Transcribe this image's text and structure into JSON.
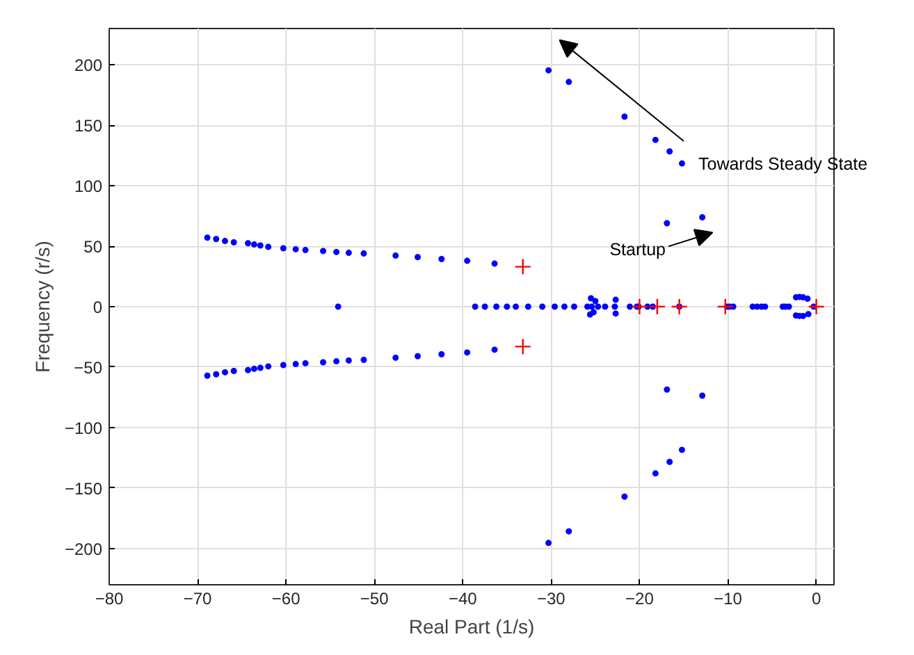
{
  "chart_data": {
    "type": "scatter",
    "xlabel": "Real Part (1/s)",
    "ylabel": "Frequency (r/s)",
    "xlim": [
      -80,
      2
    ],
    "ylim": [
      -230,
      230
    ],
    "xticks": [
      -80,
      -70,
      -60,
      -50,
      -40,
      -30,
      -20,
      -10,
      0
    ],
    "yticks": [
      -200,
      -150,
      -100,
      -50,
      0,
      50,
      100,
      150,
      200
    ],
    "grid": true,
    "series": [
      {
        "color": "#0000ff",
        "marker": "circle",
        "x": [
          -68.9,
          -67.9,
          -66.9,
          -65.9,
          -64.3,
          -63.6,
          -62.9,
          -62.0,
          -60.3,
          -58.9,
          -57.8,
          -55.8,
          -54.3,
          -52.9,
          -51.2,
          -47.6,
          -45.1,
          -42.4,
          -39.5,
          -36.4,
          -68.9,
          -67.9,
          -66.9,
          -65.9,
          -64.3,
          -63.6,
          -62.9,
          -62.0,
          -60.3,
          -58.9,
          -57.8,
          -55.8,
          -54.3,
          -52.9,
          -51.2,
          -47.6,
          -45.1,
          -42.4,
          -39.5,
          -36.4,
          -54.1,
          -38.6,
          -37.5,
          -36.2,
          -35.0,
          -34.0,
          -32.6,
          -31.0,
          -29.6,
          -28.5,
          -27.4,
          -25.9,
          -25.4,
          -24.7,
          -23.9,
          -25.5,
          -25.0,
          -25.2,
          -25.6,
          -22.7,
          -22.7,
          -22.8,
          -21.1,
          -20.3,
          -20.1,
          -19.1,
          -18.5,
          -15.5,
          -10.1,
          -9.8,
          -9.4,
          -7.2,
          -6.7,
          -6.2,
          -5.8,
          -3.8,
          -3.5,
          -3.1,
          -2.3,
          -1.9,
          -1.5,
          -1.0,
          -2.3,
          -1.9,
          -1.5,
          -0.9,
          -0.3,
          -30.3,
          -28.0,
          -21.7,
          -18.2,
          -16.6,
          -15.2,
          -16.9,
          -12.9,
          -30.3,
          -28.0,
          -21.7,
          -18.2,
          -16.6,
          -15.2,
          -16.9,
          -12.9
        ],
        "values": [
          57.1,
          55.9,
          54.3,
          53.2,
          52.5,
          51.4,
          50.6,
          49.4,
          48.3,
          47.5,
          46.8,
          46.0,
          45.2,
          44.5,
          44.0,
          42.2,
          41.0,
          39.4,
          37.9,
          35.6,
          -57.1,
          -55.9,
          -54.3,
          -53.2,
          -52.5,
          -51.4,
          -50.6,
          -49.4,
          -48.3,
          -47.5,
          -46.8,
          -46.0,
          -45.2,
          -44.5,
          -44.0,
          -42.2,
          -41.0,
          -39.4,
          -37.9,
          -35.6,
          0,
          0,
          0,
          0,
          0,
          0,
          0,
          0,
          0,
          0,
          0,
          0,
          0,
          0,
          0,
          6.9,
          4.6,
          -4.6,
          -6.5,
          5.7,
          -5.7,
          0,
          0,
          0,
          0,
          0,
          0,
          0,
          0,
          0,
          0,
          0,
          0,
          0,
          0,
          0,
          0,
          0,
          7.7,
          8.0,
          7.7,
          6.6,
          -7.3,
          -7.7,
          -7.7,
          -6.2,
          0,
          195.4,
          185.8,
          157.1,
          137.9,
          128.4,
          118.4,
          69.0,
          73.9,
          -195.4,
          -185.8,
          -157.1,
          -137.9,
          -128.4,
          -118.4,
          -68.6,
          -73.6
        ]
      },
      {
        "color": "#ff0000",
        "marker": "cross",
        "x": [
          -33.2,
          -33.2,
          -20.0,
          -18.0,
          -15.5,
          -10.3,
          0
        ],
        "values": [
          33,
          -33,
          0,
          0,
          0,
          0,
          0
        ]
      }
    ],
    "annotations": [
      "Towards Steady State",
      "Startup"
    ]
  }
}
